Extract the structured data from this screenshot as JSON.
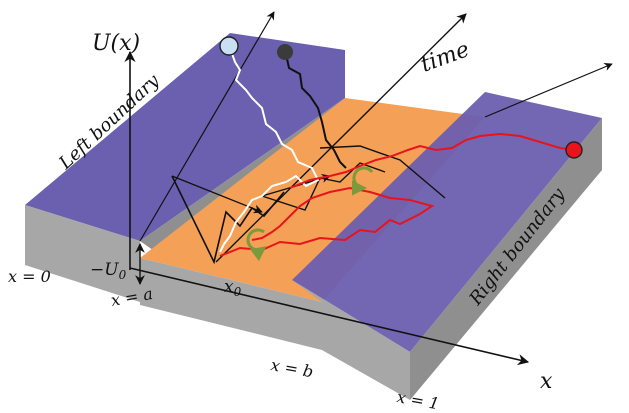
{
  "labels": {
    "potential_axis": "U(x)",
    "time_axis": "time",
    "x_axis": "x",
    "left_boundary": "Left boundary",
    "right_boundary": "Right boundary",
    "well_depth": "−U",
    "well_depth_sub": "0",
    "start_point": "x",
    "start_point_sub": "0",
    "x_eq_0": "x = 0",
    "x_eq_a": "x = a",
    "x_eq_b": "x = b",
    "x_eq_1": "x = 1"
  },
  "colors": {
    "boundary_top": "#6b5fb0",
    "boundary_side": "#a7a7a7",
    "well_floor": "#f4a056",
    "well_side": "#a7a7a7",
    "path_red": "#e8131b",
    "path_white": "#ffffff",
    "path_black": "#111111",
    "start_marker_white": "#c8e0f2",
    "start_marker_black": "#3b3b3b",
    "end_marker_red": "#e8131b",
    "rotation_arrow": "#7a9a3b"
  }
}
